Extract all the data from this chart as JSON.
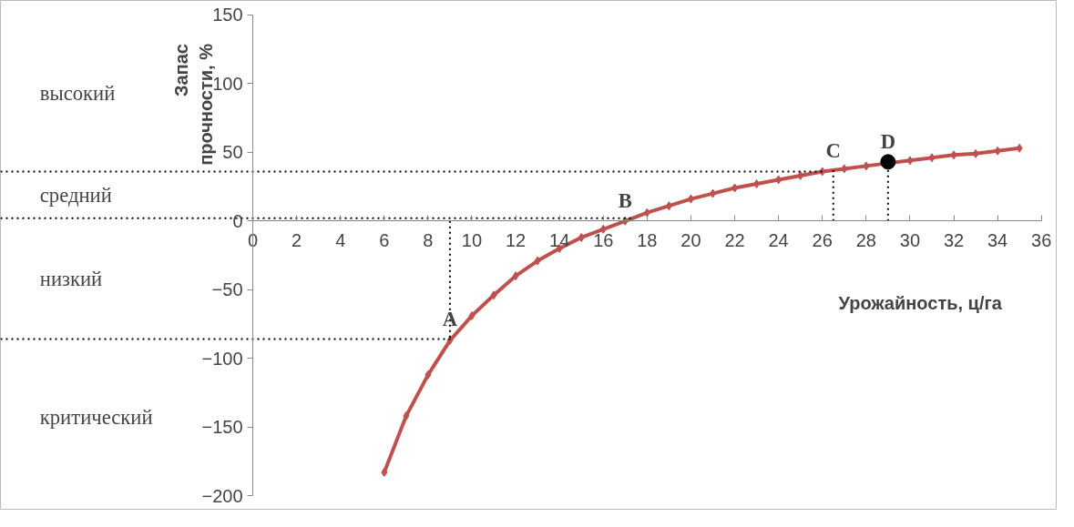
{
  "chart_data": {
    "type": "line",
    "xlabel": "Урожайность, ц/га",
    "ylabel": "Запас прочности, %",
    "xlim": [
      0,
      36
    ],
    "xticks": [
      0,
      2,
      4,
      6,
      8,
      10,
      12,
      14,
      16,
      18,
      20,
      22,
      24,
      26,
      28,
      30,
      32,
      34,
      36
    ],
    "ylim": [
      -200,
      150
    ],
    "yticks": [
      -200,
      -150,
      -100,
      -50,
      0,
      50,
      100,
      150
    ],
    "grid": false,
    "marker": "diamond",
    "line_style": "solid",
    "series": [
      {
        "color": "#c0504d",
        "x": [
          6,
          7,
          8,
          9,
          10,
          11,
          12,
          13,
          14,
          15,
          16,
          17,
          18,
          19,
          20,
          21,
          22,
          23,
          24,
          25,
          26,
          27,
          28,
          29,
          30,
          31,
          32,
          33,
          34,
          35
        ],
        "values": [
          -183,
          -142,
          -112,
          -87,
          -69,
          -54,
          -40,
          -29,
          -20,
          -12,
          -6,
          0,
          6,
          11,
          16,
          20,
          24,
          27,
          30,
          33,
          36,
          38,
          40,
          null,
          44,
          46,
          48,
          49,
          51,
          53
        ]
      },
      {
        "type": "scatter",
        "color": "#000000",
        "marker": "circle",
        "x": [
          29
        ],
        "values": [
          43
        ]
      }
    ],
    "ref_lines": [
      {
        "axis": "y",
        "value": 36,
        "line_style": "dotted",
        "color": "#000000"
      },
      {
        "axis": "y",
        "value": 2,
        "line_style": "dotted",
        "color": "#000000"
      },
      {
        "axis": "y",
        "value": -86,
        "line_style": "dotted",
        "color": "#000000"
      },
      {
        "axis": "x",
        "value": 9,
        "line_style": "dotted",
        "color": "#000000"
      },
      {
        "axis": "x",
        "value": 26.5,
        "line_style": "dotted",
        "color": "#000000"
      },
      {
        "axis": "x",
        "value": 29,
        "line_style": "dotted",
        "color": "#000000"
      }
    ],
    "annotations": [
      {
        "text": "A",
        "x": 9,
        "y": -86
      },
      {
        "text": "B",
        "x": 17,
        "y": 0
      },
      {
        "text": "C",
        "x": 26.5,
        "y": 36
      },
      {
        "text": "D",
        "x": 29,
        "y": 43
      },
      "высокий",
      "средний",
      "низкий",
      "критический"
    ]
  }
}
